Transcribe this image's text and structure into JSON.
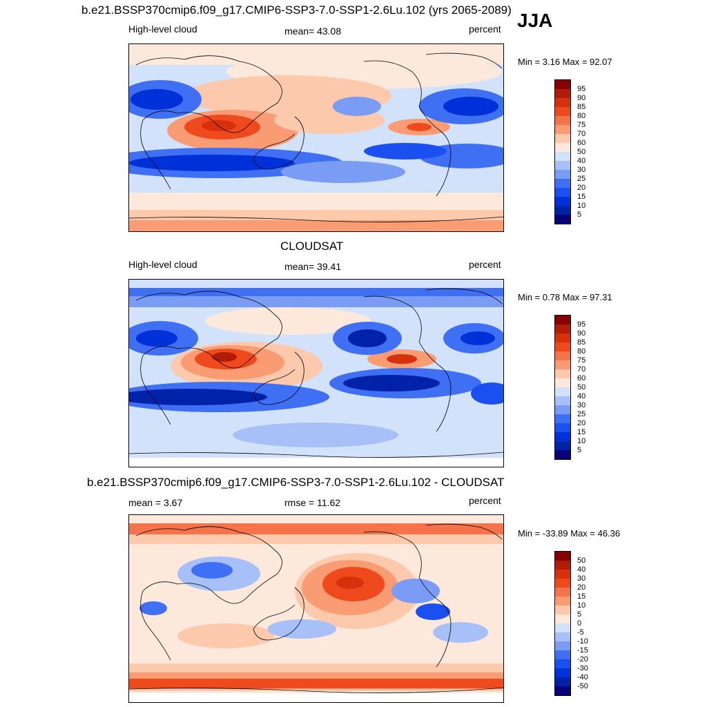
{
  "season": "JJA",
  "colors": {
    "abs": [
      "#08007a",
      "#0022a8",
      "#0030d8",
      "#1a4ff0",
      "#3f6ff2",
      "#7a9cf5",
      "#a8c0f8",
      "#d2e2fb",
      "#fce9dc",
      "#fcc9ac",
      "#f99c74",
      "#f4734a",
      "#ee4a1e",
      "#d6300d",
      "#b01c07",
      "#860000"
    ],
    "diff": [
      "#08007a",
      "#0022a8",
      "#0030d8",
      "#1a4ff0",
      "#3f6ff2",
      "#7a9cf5",
      "#a8c0f8",
      "#d2e2fb",
      "#fce9dc",
      "#fcc9ac",
      "#f99c74",
      "#f4734a",
      "#ee4a1e",
      "#d6300d",
      "#b01c07",
      "#860000"
    ]
  },
  "panels": [
    {
      "title": "b.e21.BSSP370cmip6.f09_g17.CMIP6-SSP3-7.0-SSP1-2.6Lu.102 (yrs 2065-2089)",
      "left": "High-level cloud",
      "center": "mean=  43.08",
      "right": "percent",
      "minmax": "Min =   3.16 Max =  92.07",
      "levels": [
        "95",
        "90",
        "85",
        "80",
        "75",
        "70",
        "60",
        "50",
        "40",
        "30",
        "25",
        "20",
        "15",
        "10",
        "5"
      ]
    },
    {
      "title": "CLOUDSAT",
      "left": "High-level cloud",
      "center": "mean=  39.41",
      "right": "percent",
      "minmax": "Min =   0.78 Max =  97.31",
      "levels": [
        "95",
        "90",
        "85",
        "80",
        "75",
        "70",
        "60",
        "50",
        "40",
        "30",
        "25",
        "20",
        "15",
        "10",
        "5"
      ]
    },
    {
      "title": "b.e21.BSSP370cmip6.f09_g17.CMIP6-SSP3-7.0-SSP1-2.6Lu.102 - CLOUDSAT",
      "left": "mean =   3.67",
      "center": "rmse =  11.62",
      "right": "percent",
      "minmax": "Min = -33.89 Max =  46.36",
      "levels": [
        "50",
        "40",
        "30",
        "20",
        "15",
        "10",
        "5",
        "0",
        "-5",
        "-10",
        "-15",
        "-20",
        "-30",
        "-40",
        "-50"
      ]
    }
  ]
}
